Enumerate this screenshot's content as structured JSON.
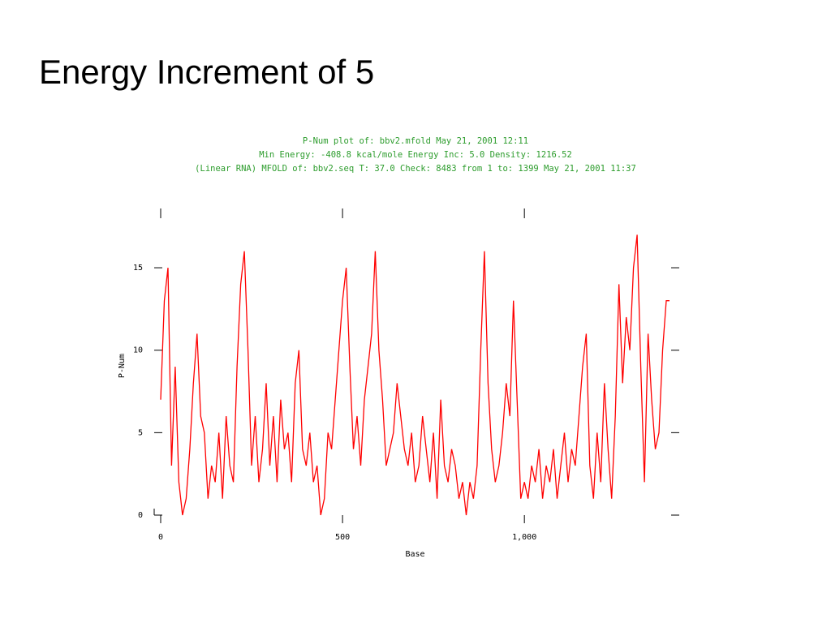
{
  "slide_title": "Energy Increment of 5",
  "chart_data": {
    "type": "line",
    "header": [
      "P-Num plot of: bbv2.mfold  May 21, 2001 12:11",
      "Min Energy: -408.8 kcal/mole Energy Inc: 5.0   Density: 1216.52",
      "(Linear RNA) MFOLD of: bbv2.seq T: 37.0 Check: 8483 from 1 to: 1399  May 21, 2001 11:37"
    ],
    "header_color": "#2c9c2c",
    "xlabel": "Base",
    "ylabel": "P-Num",
    "axis_label_color": "#1f1fd0",
    "xlim": [
      0,
      1399
    ],
    "ylim": [
      0,
      18.2
    ],
    "xticks": [
      0,
      500,
      {
        "value": 1000,
        "label": "1,000"
      }
    ],
    "yticks": [
      0,
      5,
      10,
      15
    ],
    "series": [
      {
        "color": "#ff0000",
        "x": [
          0,
          10,
          20,
          30,
          40,
          50,
          60,
          70,
          80,
          90,
          100,
          110,
          120,
          130,
          140,
          150,
          160,
          170,
          180,
          190,
          200,
          210,
          220,
          230,
          240,
          250,
          260,
          270,
          280,
          290,
          300,
          310,
          320,
          330,
          340,
          350,
          360,
          370,
          380,
          390,
          400,
          410,
          420,
          430,
          440,
          450,
          460,
          470,
          480,
          490,
          500,
          510,
          520,
          530,
          540,
          550,
          560,
          570,
          580,
          590,
          600,
          610,
          620,
          630,
          640,
          650,
          660,
          670,
          680,
          690,
          700,
          710,
          720,
          730,
          740,
          750,
          760,
          770,
          780,
          790,
          800,
          810,
          820,
          830,
          840,
          850,
          860,
          870,
          880,
          890,
          900,
          910,
          920,
          930,
          940,
          950,
          960,
          970,
          980,
          990,
          1000,
          1010,
          1020,
          1030,
          1040,
          1050,
          1060,
          1070,
          1080,
          1090,
          1100,
          1110,
          1120,
          1130,
          1140,
          1150,
          1160,
          1170,
          1180,
          1190,
          1200,
          1210,
          1220,
          1230,
          1240,
          1250,
          1260,
          1270,
          1280,
          1290,
          1300,
          1310,
          1320,
          1330,
          1340,
          1350,
          1360,
          1370,
          1380,
          1390,
          1399
        ],
        "values": [
          7,
          13,
          15,
          3,
          9,
          2,
          0,
          1,
          4,
          8,
          11,
          6,
          5,
          1,
          3,
          2,
          5,
          1,
          6,
          3,
          2,
          9,
          14,
          16,
          10,
          3,
          6,
          2,
          4,
          8,
          3,
          6,
          2,
          7,
          4,
          5,
          2,
          8,
          10,
          4,
          3,
          5,
          2,
          3,
          0,
          1,
          5,
          4,
          7,
          10,
          13,
          15,
          9,
          4,
          6,
          3,
          7,
          9,
          11,
          16,
          10,
          7,
          3,
          4,
          5,
          8,
          6,
          4,
          3,
          5,
          2,
          3,
          6,
          4,
          2,
          5,
          1,
          7,
          3,
          2,
          4,
          3,
          1,
          2,
          0,
          2,
          1,
          3,
          10,
          16,
          8,
          4,
          2,
          3,
          5,
          8,
          6,
          13,
          7,
          1,
          2,
          1,
          3,
          2,
          4,
          1,
          3,
          2,
          4,
          1,
          3,
          5,
          2,
          4,
          3,
          6,
          9,
          11,
          3,
          1,
          5,
          2,
          8,
          4,
          1,
          6,
          14,
          8,
          12,
          10,
          15,
          17,
          9,
          2,
          11,
          7,
          4,
          5,
          10,
          13,
          13
        ]
      }
    ]
  }
}
